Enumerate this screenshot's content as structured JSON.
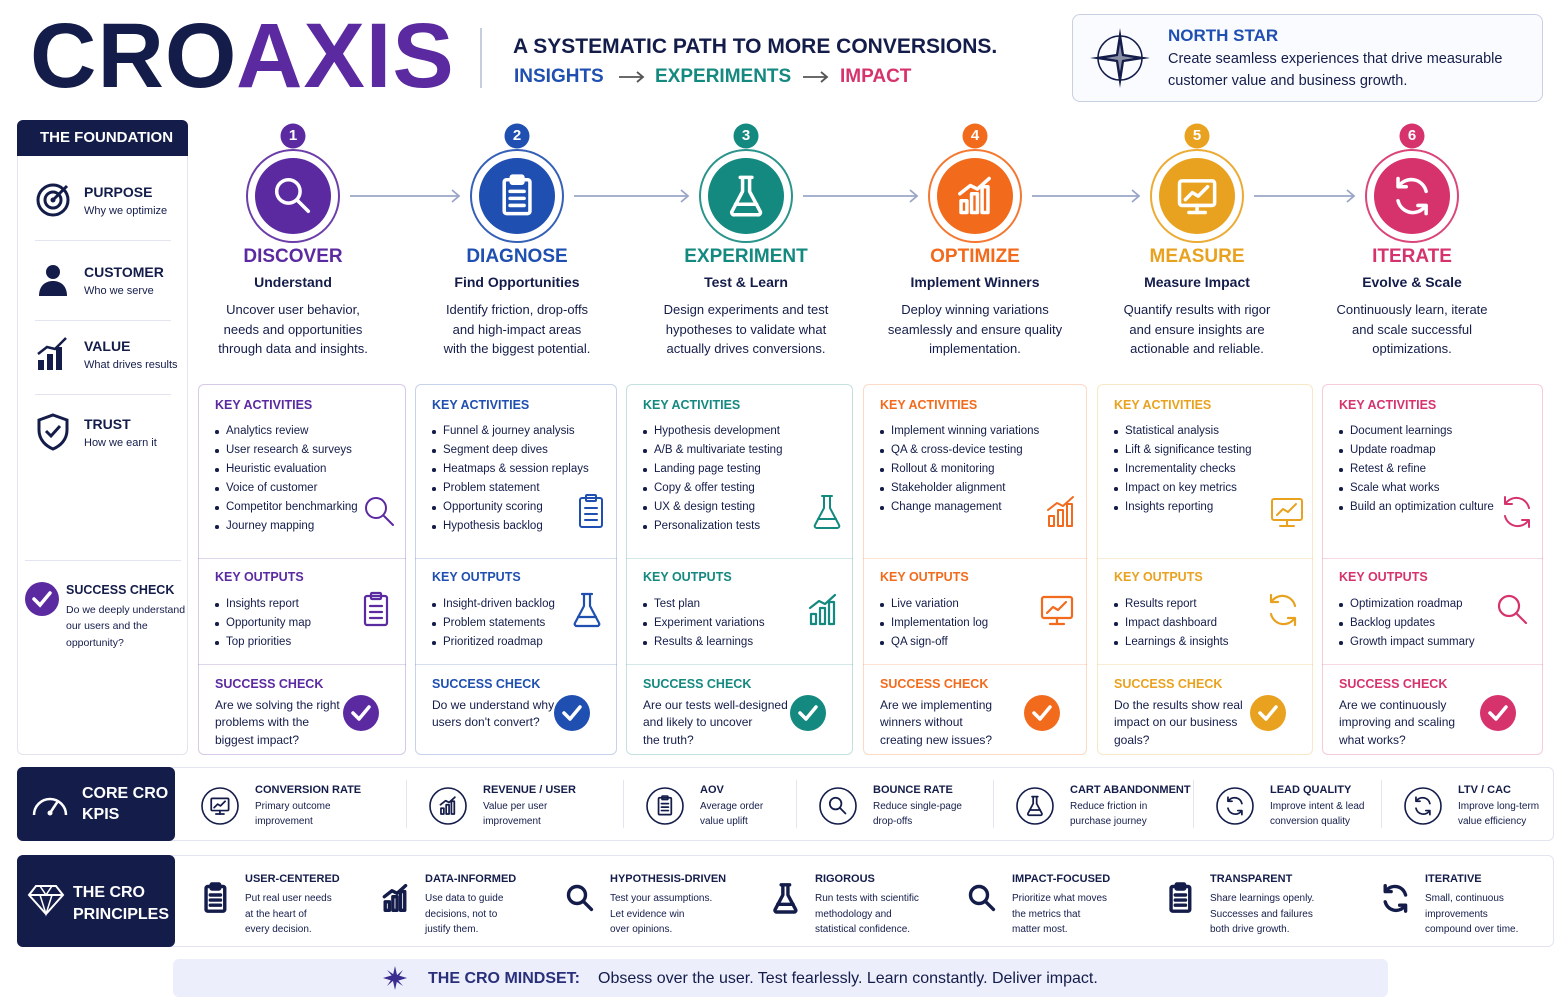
{
  "header": {
    "title_part1": "CRO",
    "title_part2": "AXIS",
    "tagline": "A SYSTEMATIC PATH TO MORE CONVERSIONS.",
    "flow": [
      {
        "text": "INSIGHTS",
        "color": "#1f4fb0"
      },
      {
        "text": "EXPERIMENTS",
        "color": "#13897f"
      },
      {
        "text": "IMPACT",
        "color": "#d6336c"
      }
    ]
  },
  "north_star": {
    "title": "NORTH STAR",
    "lines": [
      "Create seamless experiences that drive measurable",
      "customer value and business growth."
    ]
  },
  "foundation": {
    "title": "THE FOUNDATION",
    "items": [
      {
        "title": "PURPOSE",
        "subtitle": "Why we optimize"
      },
      {
        "title": "CUSTOMER",
        "subtitle": "Who we serve"
      },
      {
        "title": "VALUE",
        "subtitle": "What drives results"
      },
      {
        "title": "TRUST",
        "subtitle": "How we earn it"
      }
    ],
    "success_lines": [
      "Do we deeply understand",
      "our users and the",
      "opportunity?"
    ]
  },
  "step_labels": {
    "activities": "KEY ACTIVITIES",
    "outputs": "KEY OUTPUTS",
    "success": "SUCCESS CHECK"
  },
  "steps": [
    {
      "number": 1,
      "name": "DISCOVER",
      "subtitle": "Understand",
      "color": "#5b2aa0",
      "description": [
        "Uncover user behavior,",
        "needs and opportunities",
        "through data and insights."
      ],
      "activities": [
        "Analytics review",
        "User research & surveys",
        "Heuristic evaluation",
        "Voice of customer",
        "Competitor benchmarking",
        "Journey mapping"
      ],
      "outputs": [
        "Insights report",
        "Opportunity map",
        "Top priorities"
      ],
      "success": [
        "Are we solving the right",
        "problems with the",
        "biggest impact?"
      ]
    },
    {
      "number": 2,
      "name": "DIAGNOSE",
      "subtitle": "Find Opportunities",
      "color": "#1f4fb0",
      "description": [
        "Identify friction, drop-offs",
        "and high-impact areas",
        "with the biggest potential."
      ],
      "activities": [
        "Funnel & journey analysis",
        "Segment deep dives",
        "Heatmaps & session replays",
        "Problem statement",
        "Opportunity scoring",
        "Hypothesis backlog"
      ],
      "outputs": [
        "Insight-driven backlog",
        "Problem statements",
        "Prioritized roadmap"
      ],
      "success": [
        "Do we understand why",
        "users don't convert?"
      ]
    },
    {
      "number": 3,
      "name": "EXPERIMENT",
      "subtitle": "Test & Learn",
      "color": "#13897f",
      "description": [
        "Design experiments and test",
        "hypotheses to validate what",
        "actually drives conversions."
      ],
      "activities": [
        "Hypothesis development",
        "A/B & multivariate testing",
        "Landing page testing",
        "Copy & offer testing",
        "UX & design testing",
        "Personalization tests"
      ],
      "outputs": [
        "Test plan",
        "Experiment variations",
        "Results & learnings"
      ],
      "success": [
        "Are our tests well-designed",
        "and likely to uncover",
        "the truth?"
      ]
    },
    {
      "number": 4,
      "name": "OPTIMIZE",
      "subtitle": "Implement Winners",
      "color": "#f26b1d",
      "description": [
        "Deploy winning variations",
        "seamlessly and ensure quality",
        "implementation."
      ],
      "activities": [
        "Implement winning variations",
        "QA & cross-device testing",
        "Rollout & monitoring",
        "Stakeholder alignment",
        "Change management"
      ],
      "outputs": [
        "Live variation",
        "Implementation log",
        "QA sign-off"
      ],
      "success": [
        "Are we implementing",
        "winners without",
        "creating new issues?"
      ]
    },
    {
      "number": 5,
      "name": "MEASURE",
      "subtitle": "Measure Impact",
      "color": "#e9a21f",
      "description": [
        "Quantify results with rigor",
        "and ensure insights are",
        "actionable and reliable."
      ],
      "activities": [
        "Statistical analysis",
        "Lift & significance testing",
        "Incrementality checks",
        "Impact on key metrics",
        "Insights reporting"
      ],
      "outputs": [
        "Results report",
        "Impact dashboard",
        "Learnings & insights"
      ],
      "success": [
        "Do the results show real",
        "impact on our business",
        "goals?"
      ]
    },
    {
      "number": 6,
      "name": "ITERATE",
      "subtitle": "Evolve & Scale",
      "color": "#d6336c",
      "description": [
        "Continuously learn, iterate",
        "and scale successful",
        "optimizations."
      ],
      "activities": [
        "Document learnings",
        "Update roadmap",
        "Retest & refine",
        "Scale what works",
        "Build an optimization culture"
      ],
      "outputs": [
        "Optimization roadmap",
        "Backlog updates",
        "Growth impact summary"
      ],
      "success": [
        "Are we continuously",
        "improving and scaling",
        "what works?"
      ]
    }
  ],
  "kpis": {
    "label": [
      "CORE CRO",
      "KPIS"
    ],
    "items": [
      {
        "title": "CONVERSION RATE",
        "lines": [
          "Primary outcome",
          "improvement"
        ]
      },
      {
        "title": "REVENUE / USER",
        "lines": [
          "Value per user",
          "improvement"
        ]
      },
      {
        "title": "AOV",
        "lines": [
          "Average order",
          "value uplift"
        ]
      },
      {
        "title": "BOUNCE RATE",
        "lines": [
          "Reduce single-page",
          "drop-offs"
        ]
      },
      {
        "title": "CART ABANDONMENT",
        "lines": [
          "Reduce friction in",
          "purchase journey"
        ]
      },
      {
        "title": "LEAD QUALITY",
        "lines": [
          "Improve intent & lead",
          "conversion quality"
        ]
      },
      {
        "title": "LTV / CAC",
        "lines": [
          "Improve long-term",
          "value efficiency"
        ]
      }
    ]
  },
  "principles": {
    "label": [
      "THE CRO",
      "PRINCIPLES"
    ],
    "items": [
      {
        "title": "USER-CENTERED",
        "lines": [
          "Put real user needs",
          "at the heart of",
          "every decision."
        ]
      },
      {
        "title": "DATA-INFORMED",
        "lines": [
          "Use data to guide",
          "decisions, not to",
          "justify them."
        ]
      },
      {
        "title": "HYPOTHESIS-DRIVEN",
        "lines": [
          "Test your assumptions.",
          "Let evidence win",
          "over opinions."
        ]
      },
      {
        "title": "RIGOROUS",
        "lines": [
          "Run tests with scientific",
          "methodology and",
          "statistical confidence."
        ]
      },
      {
        "title": "IMPACT-FOCUSED",
        "lines": [
          "Prioritize what moves",
          "the metrics that",
          "matter most."
        ]
      },
      {
        "title": "TRANSPARENT",
        "lines": [
          "Share learnings openly.",
          "Successes and failures",
          "both drive growth."
        ]
      },
      {
        "title": "ITERATIVE",
        "lines": [
          "Small, continuous",
          "improvements",
          "compound over time."
        ]
      }
    ]
  },
  "mindset": {
    "label": "THE CRO MINDSET:",
    "text": "Obsess over the user. Test fearlessly. Learn constantly. Deliver impact."
  }
}
